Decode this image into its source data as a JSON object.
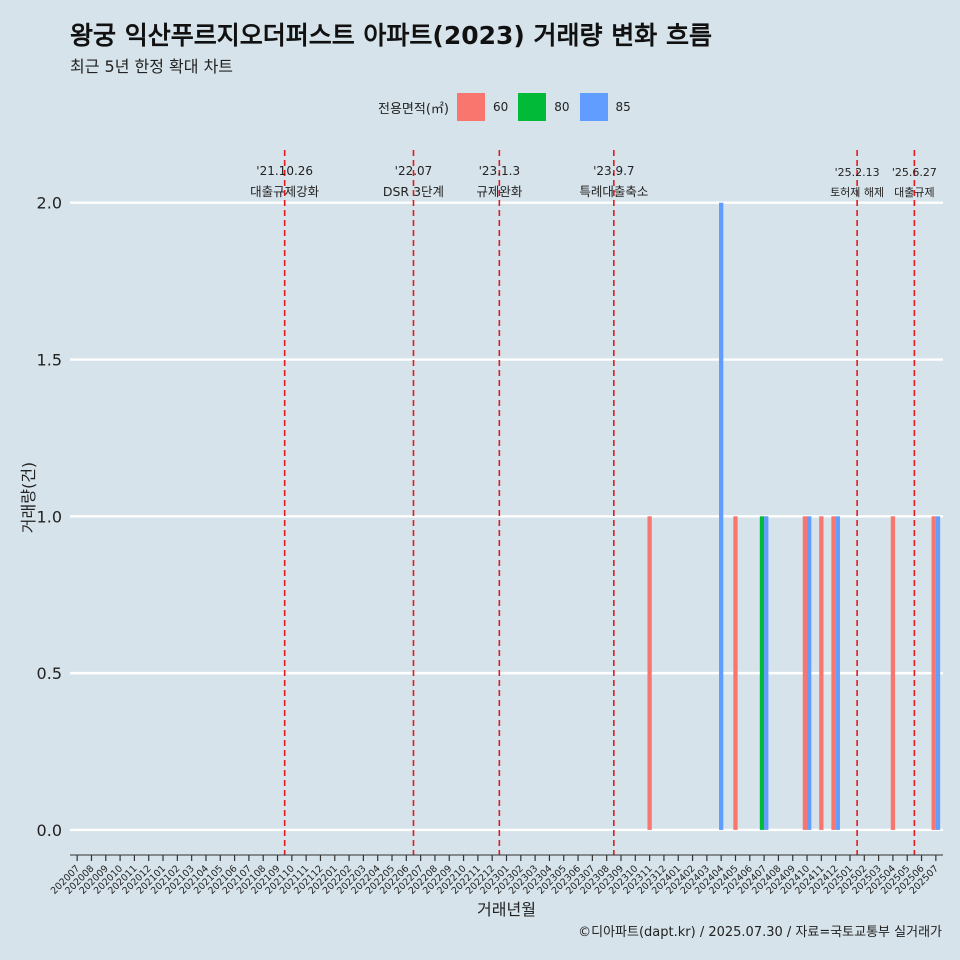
{
  "title": "왕궁 익산푸르지오더퍼스트 아파트(2023) 거래량 변화 흐름",
  "subtitle": "최근 5년 한정 확대 차트",
  "caption": "©디아파트(dapt.kr) / 2025.07.30 / 자료=국토교통부 실거래가",
  "legend": {
    "title": "전용면적(㎡)",
    "items": [
      {
        "label": "60",
        "color": "#f8766d"
      },
      {
        "label": "80",
        "color": "#00ba38"
      },
      {
        "label": "85",
        "color": "#619cff"
      }
    ]
  },
  "chart_data": {
    "type": "bar",
    "xlabel": "거래년월",
    "ylabel": "거래량(건)",
    "ylim": [
      -0.08,
      2.2
    ],
    "yticks": [
      0.0,
      0.5,
      1.0,
      1.5,
      2.0
    ],
    "ytick_labels": [
      "0.0",
      "0.5",
      "1.0",
      "1.5",
      "2.0"
    ],
    "grid": true,
    "legend_position": "top",
    "categories": [
      "202007",
      "202008",
      "202009",
      "202010",
      "202011",
      "202012",
      "202101",
      "202102",
      "202103",
      "202104",
      "202105",
      "202106",
      "202107",
      "202108",
      "202109",
      "202110",
      "202111",
      "202112",
      "202201",
      "202202",
      "202203",
      "202204",
      "202205",
      "202206",
      "202207",
      "202208",
      "202209",
      "202210",
      "202211",
      "202212",
      "202301",
      "202302",
      "202303",
      "202304",
      "202305",
      "202306",
      "202307",
      "202308",
      "202309",
      "202310",
      "202311",
      "202312",
      "202401",
      "202402",
      "202403",
      "202404",
      "202405",
      "202406",
      "202407",
      "202408",
      "202409",
      "202410",
      "202411",
      "202412",
      "202501",
      "202502",
      "202503",
      "202504",
      "202505",
      "202506",
      "202507"
    ],
    "series": [
      {
        "name": "60",
        "color": "#f8766d",
        "points": [
          [
            "202311",
            1
          ],
          [
            "202405",
            1
          ],
          [
            "202410",
            1
          ],
          [
            "202411",
            1
          ],
          [
            "202412",
            1
          ],
          [
            "202504",
            1
          ],
          [
            "202507",
            1
          ]
        ]
      },
      {
        "name": "80",
        "color": "#00ba38",
        "points": [
          [
            "202407",
            1
          ]
        ]
      },
      {
        "name": "85",
        "color": "#619cff",
        "points": [
          [
            "202404",
            2
          ],
          [
            "202407",
            1
          ],
          [
            "202410",
            1
          ],
          [
            "202412",
            1
          ],
          [
            "202507",
            1
          ]
        ]
      }
    ],
    "events": [
      {
        "date": "'21.10.26",
        "label": "대출규제강화",
        "position": 15.0
      },
      {
        "date": "'22.07",
        "label": "DSR 3단계",
        "position": 24.0
      },
      {
        "date": "'23.1.3",
        "label": "규제완화",
        "position": 30.0
      },
      {
        "date": "'23.9.7",
        "label": "특례대출축소",
        "position": 38.0
      },
      {
        "date": "'25.2.13",
        "label": "토허제 해제",
        "position": 55.0
      },
      {
        "date": "'25.6.27",
        "label": "대출규제",
        "position": 59.0
      }
    ]
  }
}
